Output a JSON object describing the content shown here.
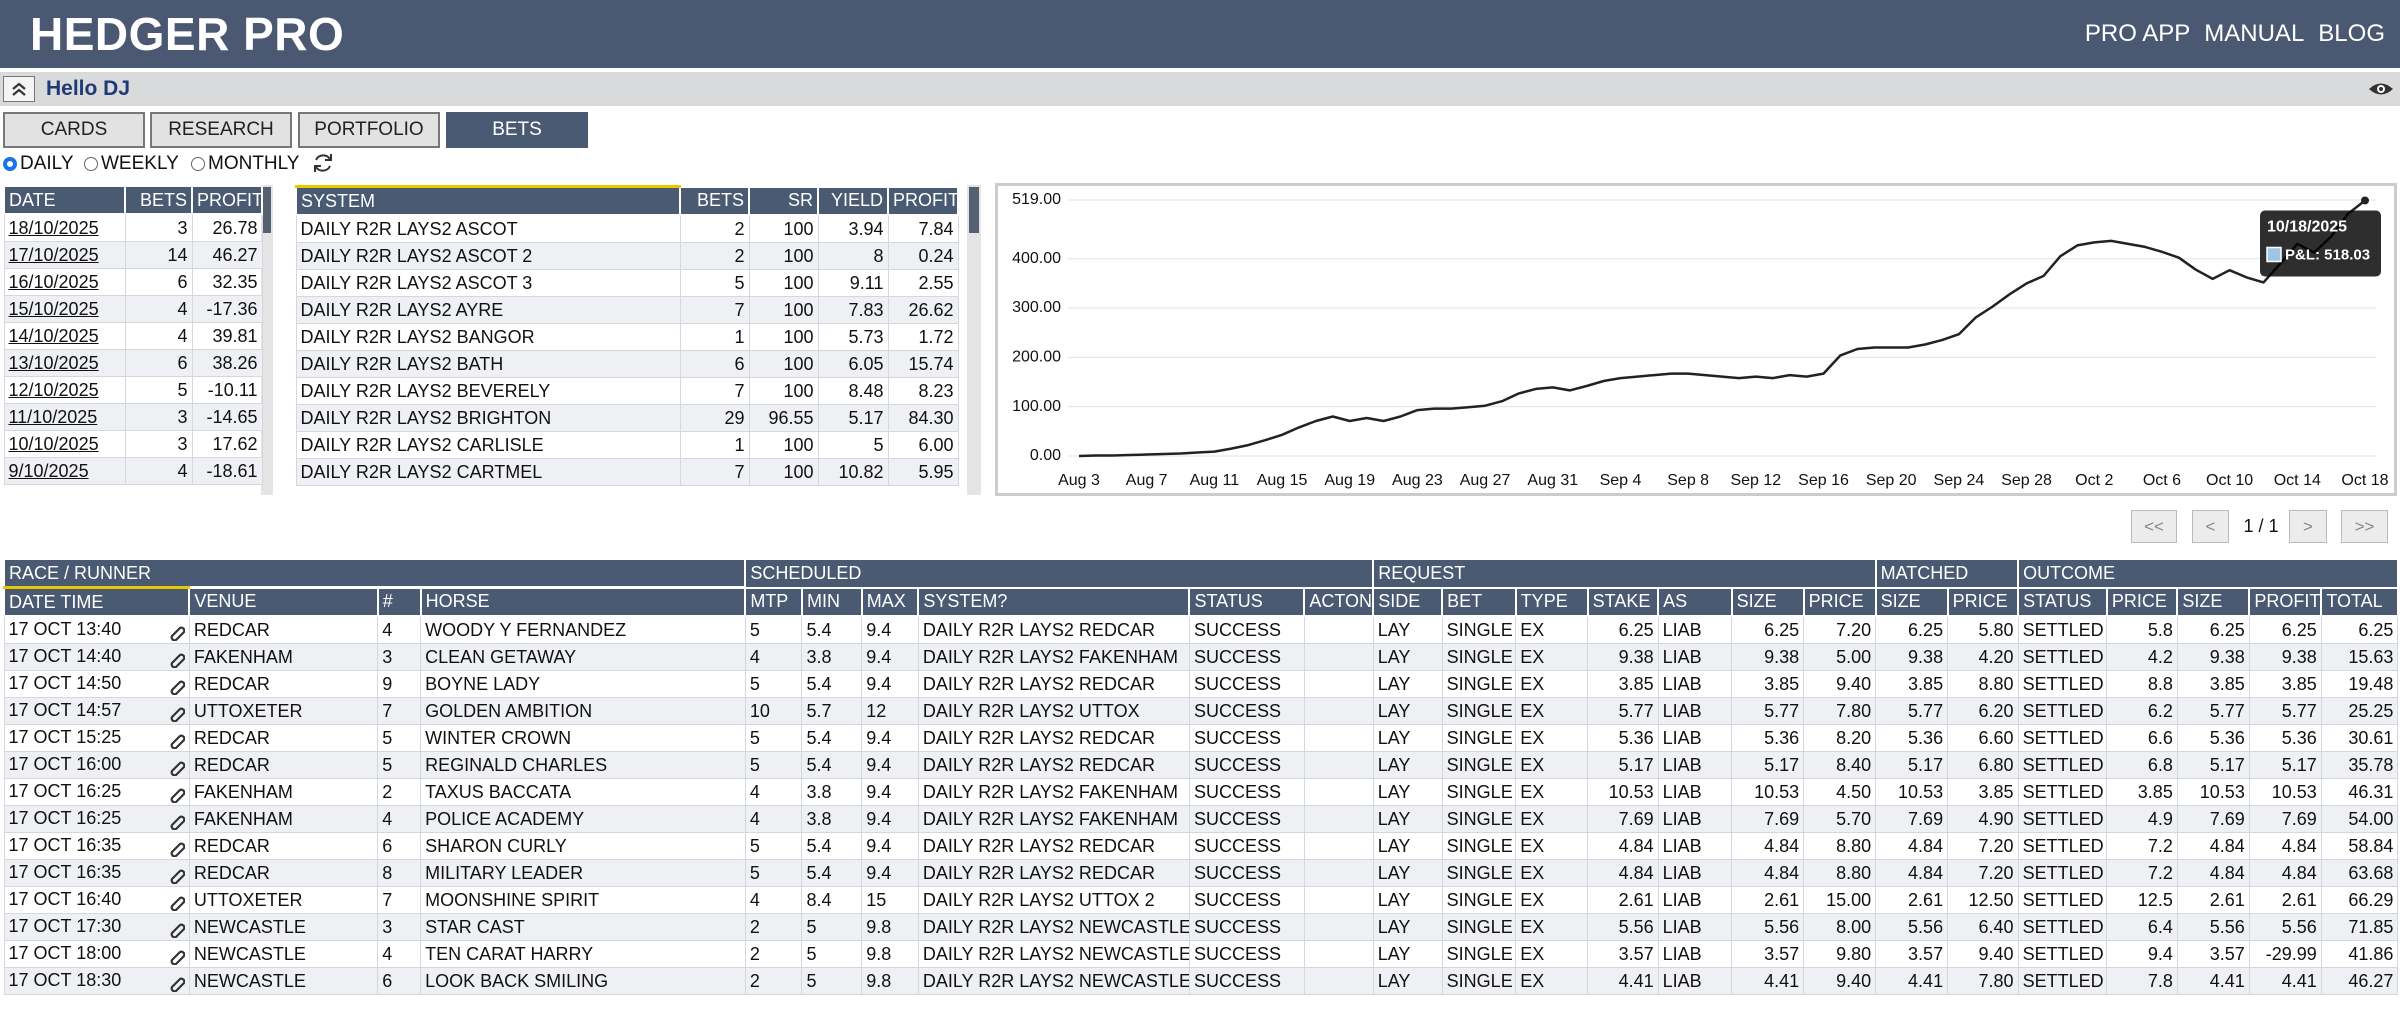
{
  "header": {
    "title": "HEDGER PRO",
    "nav": [
      "PRO APP",
      "MANUAL",
      "BLOG"
    ]
  },
  "greeting": "Hello DJ",
  "tabs": [
    "CARDS",
    "RESEARCH",
    "PORTFOLIO",
    "BETS"
  ],
  "periods": [
    "DAILY",
    "WEEKLY",
    "MONTHLY"
  ],
  "bets_table": {
    "columns": [
      "DATE",
      "BETS",
      "PROFIT"
    ],
    "rows": [
      [
        "18/10/2025",
        "3",
        "26.78"
      ],
      [
        "17/10/2025",
        "14",
        "46.27"
      ],
      [
        "16/10/2025",
        "6",
        "32.35"
      ],
      [
        "15/10/2025",
        "4",
        "-17.36"
      ],
      [
        "14/10/2025",
        "4",
        "39.81"
      ],
      [
        "13/10/2025",
        "6",
        "38.26"
      ],
      [
        "12/10/2025",
        "5",
        "-10.11"
      ],
      [
        "11/10/2025",
        "3",
        "-14.65"
      ],
      [
        "10/10/2025",
        "3",
        "17.62"
      ],
      [
        "9/10/2025",
        "4",
        "-18.61"
      ]
    ]
  },
  "systems_table": {
    "columns": [
      "SYSTEM",
      "BETS",
      "SR",
      "YIELD",
      "PROFIT"
    ],
    "rows": [
      [
        "DAILY R2R LAYS2 ASCOT",
        "2",
        "100",
        "3.94",
        "7.84"
      ],
      [
        "DAILY R2R LAYS2 ASCOT 2",
        "2",
        "100",
        "8",
        "0.24"
      ],
      [
        "DAILY R2R LAYS2 ASCOT 3",
        "5",
        "100",
        "9.11",
        "2.55"
      ],
      [
        "DAILY R2R LAYS2 AYRE",
        "7",
        "100",
        "7.83",
        "26.62"
      ],
      [
        "DAILY R2R LAYS2 BANGOR",
        "1",
        "100",
        "5.73",
        "1.72"
      ],
      [
        "DAILY R2R LAYS2 BATH",
        "6",
        "100",
        "6.05",
        "15.74"
      ],
      [
        "DAILY R2R LAYS2 BEVERELY",
        "7",
        "100",
        "8.48",
        "8.23"
      ],
      [
        "DAILY R2R LAYS2 BRIGHTON",
        "29",
        "96.55",
        "5.17",
        "84.30"
      ],
      [
        "DAILY R2R LAYS2 CARLISLE",
        "1",
        "100",
        "5",
        "6.00"
      ],
      [
        "DAILY R2R LAYS2 CARTMEL",
        "7",
        "100",
        "10.82",
        "5.95"
      ]
    ]
  },
  "chart_data": {
    "type": "line",
    "color": "#222222",
    "grid": true,
    "categories": [
      "Aug 3",
      null,
      null,
      null,
      "Aug 7",
      null,
      null,
      null,
      "Aug 11",
      null,
      null,
      null,
      "Aug 15",
      null,
      null,
      null,
      "Aug 19",
      null,
      null,
      null,
      "Aug 23",
      null,
      null,
      null,
      "Aug 27",
      null,
      null,
      null,
      "Aug 31",
      null,
      null,
      null,
      "Sep 4",
      null,
      null,
      null,
      "Sep 8",
      null,
      null,
      null,
      "Sep 12",
      null,
      null,
      null,
      "Sep 16",
      null,
      null,
      null,
      "Sep 20",
      null,
      null,
      null,
      "Sep 24",
      null,
      null,
      null,
      "Sep 28",
      null,
      null,
      null,
      "Oct 2",
      null,
      null,
      null,
      "Oct 6",
      null,
      null,
      null,
      "Oct 10",
      null,
      null,
      null,
      "Oct 14",
      null,
      null,
      null,
      "Oct 18"
    ],
    "values": [
      0,
      1,
      1,
      2,
      3,
      4,
      5,
      7,
      9,
      15,
      22,
      32,
      43,
      58,
      71,
      80,
      71,
      77,
      71,
      80,
      93,
      96,
      96,
      99,
      102,
      111,
      127,
      136,
      139,
      133,
      142,
      152,
      158,
      161,
      164,
      167,
      167,
      164,
      161,
      158,
      161,
      158,
      164,
      161,
      167,
      204,
      217,
      220,
      220,
      220,
      226,
      235,
      247,
      281,
      303,
      328,
      350,
      365,
      405,
      427,
      433,
      436,
      430,
      424,
      414,
      402,
      377.67,
      359.06,
      376.68,
      362.03,
      351.92,
      390.18,
      429.99,
      412.63,
      444.98,
      491.25,
      518.03
    ],
    "ylim": [
      0,
      519
    ],
    "yticks": [
      {
        "value": 0,
        "label": "0.00"
      },
      {
        "value": 100,
        "label": "100.00"
      },
      {
        "value": 200,
        "label": "200.00"
      },
      {
        "value": 300,
        "label": "300.00"
      },
      {
        "value": 400,
        "label": "400.00"
      },
      {
        "value": 519,
        "label": "519.00"
      }
    ],
    "tooltip": {
      "title": "10/18/2025",
      "label": "P&L: 518.03"
    }
  },
  "pagination": {
    "buttons": [
      "<<",
      "<",
      ">",
      ">>"
    ],
    "page": "1 / 1"
  },
  "results_table": {
    "groups": [
      "RACE / RUNNER",
      "SCHEDULED",
      "REQUEST",
      "MATCHED",
      "OUTCOME"
    ],
    "columns": [
      "DATE TIME",
      "VENUE",
      "#",
      "HORSE",
      "MTP",
      "MIN",
      "MAX",
      "SYSTEM?",
      "STATUS",
      "ACTON",
      "SIDE",
      "BET",
      "TYPE",
      "STAKE",
      "AS",
      "SIZE",
      "PRICE",
      "SIZE",
      "PRICE",
      "STATUS",
      "PRICE",
      "SIZE",
      "PROFIT",
      "TOTAL"
    ],
    "rows": [
      [
        "17 OCT 13:40",
        "REDCAR",
        "4",
        "WOODY Y FERNANDEZ",
        "5",
        "5.4",
        "9.4",
        "DAILY R2R LAYS2 REDCAR",
        "SUCCESS",
        "LAY",
        "SINGLE",
        "EX",
        "6.25",
        "LIAB",
        "6.25",
        "7.20",
        "6.25",
        "5.80",
        "SETTLED",
        "5.8",
        "6.25",
        "6.25",
        "6.25"
      ],
      [
        "17 OCT 14:40",
        "FAKENHAM",
        "3",
        "CLEAN GETAWAY",
        "4",
        "3.8",
        "9.4",
        "DAILY R2R LAYS2 FAKENHAM",
        "SUCCESS",
        "LAY",
        "SINGLE",
        "EX",
        "9.38",
        "LIAB",
        "9.38",
        "5.00",
        "9.38",
        "4.20",
        "SETTLED",
        "4.2",
        "9.38",
        "9.38",
        "15.63"
      ],
      [
        "17 OCT 14:50",
        "REDCAR",
        "9",
        "BOYNE LADY",
        "5",
        "5.4",
        "9.4",
        "DAILY R2R LAYS2 REDCAR",
        "SUCCESS",
        "LAY",
        "SINGLE",
        "EX",
        "3.85",
        "LIAB",
        "3.85",
        "9.40",
        "3.85",
        "8.80",
        "SETTLED",
        "8.8",
        "3.85",
        "3.85",
        "19.48"
      ],
      [
        "17 OCT 14:57",
        "UTTOXETER",
        "7",
        "GOLDEN AMBITION",
        "10",
        "5.7",
        "12",
        "DAILY R2R LAYS2 UTTOX",
        "SUCCESS",
        "LAY",
        "SINGLE",
        "EX",
        "5.77",
        "LIAB",
        "5.77",
        "7.80",
        "5.77",
        "6.20",
        "SETTLED",
        "6.2",
        "5.77",
        "5.77",
        "25.25"
      ],
      [
        "17 OCT 15:25",
        "REDCAR",
        "5",
        "WINTER CROWN",
        "5",
        "5.4",
        "9.4",
        "DAILY R2R LAYS2 REDCAR",
        "SUCCESS",
        "LAY",
        "SINGLE",
        "EX",
        "5.36",
        "LIAB",
        "5.36",
        "8.20",
        "5.36",
        "6.60",
        "SETTLED",
        "6.6",
        "5.36",
        "5.36",
        "30.61"
      ],
      [
        "17 OCT 16:00",
        "REDCAR",
        "5",
        "REGINALD CHARLES",
        "5",
        "5.4",
        "9.4",
        "DAILY R2R LAYS2 REDCAR",
        "SUCCESS",
        "LAY",
        "SINGLE",
        "EX",
        "5.17",
        "LIAB",
        "5.17",
        "8.40",
        "5.17",
        "6.80",
        "SETTLED",
        "6.8",
        "5.17",
        "5.17",
        "35.78"
      ],
      [
        "17 OCT 16:25",
        "FAKENHAM",
        "2",
        "TAXUS BACCATA",
        "4",
        "3.8",
        "9.4",
        "DAILY R2R LAYS2 FAKENHAM",
        "SUCCESS",
        "LAY",
        "SINGLE",
        "EX",
        "10.53",
        "LIAB",
        "10.53",
        "4.50",
        "10.53",
        "3.85",
        "SETTLED",
        "3.85",
        "10.53",
        "10.53",
        "46.31"
      ],
      [
        "17 OCT 16:25",
        "FAKENHAM",
        "4",
        "POLICE ACADEMY",
        "4",
        "3.8",
        "9.4",
        "DAILY R2R LAYS2 FAKENHAM",
        "SUCCESS",
        "LAY",
        "SINGLE",
        "EX",
        "7.69",
        "LIAB",
        "7.69",
        "5.70",
        "7.69",
        "4.90",
        "SETTLED",
        "4.9",
        "7.69",
        "7.69",
        "54.00"
      ],
      [
        "17 OCT 16:35",
        "REDCAR",
        "6",
        "SHARON CURLY",
        "5",
        "5.4",
        "9.4",
        "DAILY R2R LAYS2 REDCAR",
        "SUCCESS",
        "LAY",
        "SINGLE",
        "EX",
        "4.84",
        "LIAB",
        "4.84",
        "8.80",
        "4.84",
        "7.20",
        "SETTLED",
        "7.2",
        "4.84",
        "4.84",
        "58.84"
      ],
      [
        "17 OCT 16:35",
        "REDCAR",
        "8",
        "MILITARY LEADER",
        "5",
        "5.4",
        "9.4",
        "DAILY R2R LAYS2 REDCAR",
        "SUCCESS",
        "LAY",
        "SINGLE",
        "EX",
        "4.84",
        "LIAB",
        "4.84",
        "8.80",
        "4.84",
        "7.20",
        "SETTLED",
        "7.2",
        "4.84",
        "4.84",
        "63.68"
      ],
      [
        "17 OCT 16:40",
        "UTTOXETER",
        "7",
        "MOONSHINE SPIRIT",
        "4",
        "8.4",
        "15",
        "DAILY R2R LAYS2 UTTOX 2",
        "SUCCESS",
        "LAY",
        "SINGLE",
        "EX",
        "2.61",
        "LIAB",
        "2.61",
        "15.00",
        "2.61",
        "12.50",
        "SETTLED",
        "12.5",
        "2.61",
        "2.61",
        "66.29"
      ],
      [
        "17 OCT 17:30",
        "NEWCASTLE",
        "3",
        "STAR CAST",
        "2",
        "5",
        "9.8",
        "DAILY R2R LAYS2 NEWCASTLE",
        "SUCCESS",
        "LAY",
        "SINGLE",
        "EX",
        "5.56",
        "LIAB",
        "5.56",
        "8.00",
        "5.56",
        "6.40",
        "SETTLED",
        "6.4",
        "5.56",
        "5.56",
        "71.85"
      ],
      [
        "17 OCT 18:00",
        "NEWCASTLE",
        "4",
        "TEN CARAT HARRY",
        "2",
        "5",
        "9.8",
        "DAILY R2R LAYS2 NEWCASTLE",
        "SUCCESS",
        "LAY",
        "SINGLE",
        "EX",
        "3.57",
        "LIAB",
        "3.57",
        "9.80",
        "3.57",
        "9.40",
        "SETTLED",
        "9.4",
        "3.57",
        "-29.99",
        "41.86"
      ],
      [
        "17 OCT 18:30",
        "NEWCASTLE",
        "6",
        "LOOK BACK SMILING",
        "2",
        "5",
        "9.8",
        "DAILY R2R LAYS2 NEWCASTLE",
        "SUCCESS",
        "LAY",
        "SINGLE",
        "EX",
        "4.41",
        "LIAB",
        "4.41",
        "9.40",
        "4.41",
        "7.80",
        "SETTLED",
        "7.8",
        "4.41",
        "4.41",
        "46.27"
      ]
    ]
  }
}
